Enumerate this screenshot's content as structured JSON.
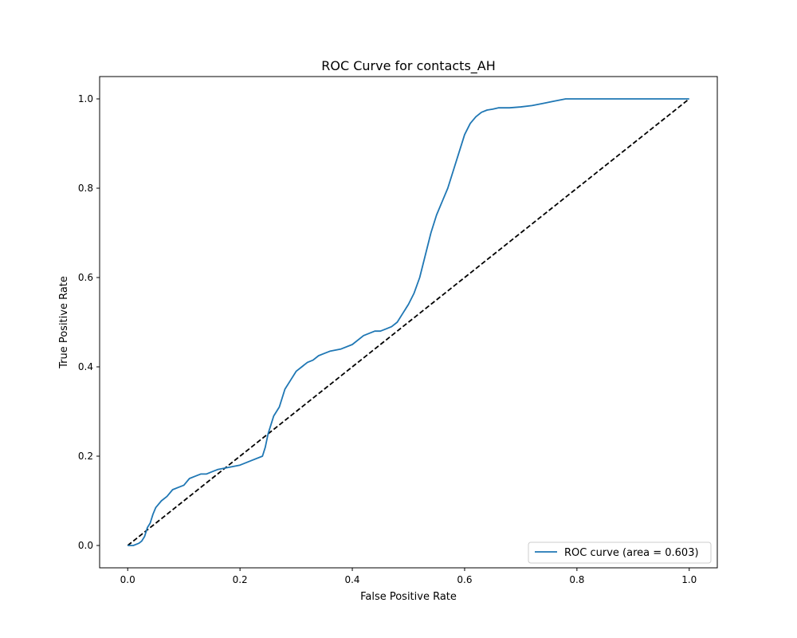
{
  "chart_data": {
    "type": "line",
    "title": "ROC Curve for contacts_AH",
    "xlabel": "False Positive Rate",
    "ylabel": "True Positive Rate",
    "xlim": [
      -0.05,
      1.05
    ],
    "ylim": [
      -0.05,
      1.05
    ],
    "xticks": [
      0.0,
      0.2,
      0.4,
      0.6,
      0.8,
      1.0
    ],
    "yticks": [
      0.0,
      0.2,
      0.4,
      0.6,
      0.8,
      1.0
    ],
    "xtick_labels": [
      "0.0",
      "0.2",
      "0.4",
      "0.6",
      "0.8",
      "1.0"
    ],
    "ytick_labels": [
      "0.0",
      "0.2",
      "0.4",
      "0.6",
      "0.8",
      "1.0"
    ],
    "grid": false,
    "legend_position": "lower-right",
    "series": [
      {
        "name": "ROC curve (area = 0.603)",
        "color": "#1f77b4",
        "style": "solid",
        "x": [
          0.0,
          0.01,
          0.02,
          0.025,
          0.03,
          0.035,
          0.04,
          0.045,
          0.05,
          0.06,
          0.07,
          0.08,
          0.09,
          0.1,
          0.11,
          0.12,
          0.13,
          0.14,
          0.15,
          0.16,
          0.18,
          0.2,
          0.22,
          0.24,
          0.245,
          0.25,
          0.255,
          0.26,
          0.27,
          0.28,
          0.29,
          0.3,
          0.31,
          0.32,
          0.33,
          0.34,
          0.35,
          0.36,
          0.38,
          0.4,
          0.42,
          0.44,
          0.45,
          0.46,
          0.47,
          0.48,
          0.49,
          0.5,
          0.51,
          0.52,
          0.53,
          0.54,
          0.55,
          0.56,
          0.57,
          0.58,
          0.59,
          0.6,
          0.61,
          0.62,
          0.63,
          0.64,
          0.65,
          0.66,
          0.68,
          0.7,
          0.72,
          0.74,
          0.76,
          0.78,
          0.8,
          0.9,
          1.0
        ],
        "y": [
          0.0,
          0.0,
          0.005,
          0.01,
          0.02,
          0.04,
          0.05,
          0.07,
          0.085,
          0.1,
          0.11,
          0.125,
          0.13,
          0.135,
          0.15,
          0.155,
          0.16,
          0.16,
          0.165,
          0.17,
          0.175,
          0.18,
          0.19,
          0.2,
          0.22,
          0.25,
          0.27,
          0.29,
          0.31,
          0.35,
          0.37,
          0.39,
          0.4,
          0.41,
          0.415,
          0.425,
          0.43,
          0.435,
          0.44,
          0.45,
          0.47,
          0.48,
          0.48,
          0.485,
          0.49,
          0.5,
          0.52,
          0.54,
          0.565,
          0.6,
          0.65,
          0.7,
          0.74,
          0.77,
          0.8,
          0.84,
          0.88,
          0.92,
          0.945,
          0.96,
          0.97,
          0.975,
          0.977,
          0.98,
          0.98,
          0.982,
          0.985,
          0.99,
          0.995,
          1.0,
          1.0,
          1.0,
          1.0
        ]
      },
      {
        "color": "#000000",
        "style": "dashed",
        "x": [
          0.0,
          1.0
        ],
        "y": [
          0.0,
          1.0
        ]
      }
    ]
  }
}
